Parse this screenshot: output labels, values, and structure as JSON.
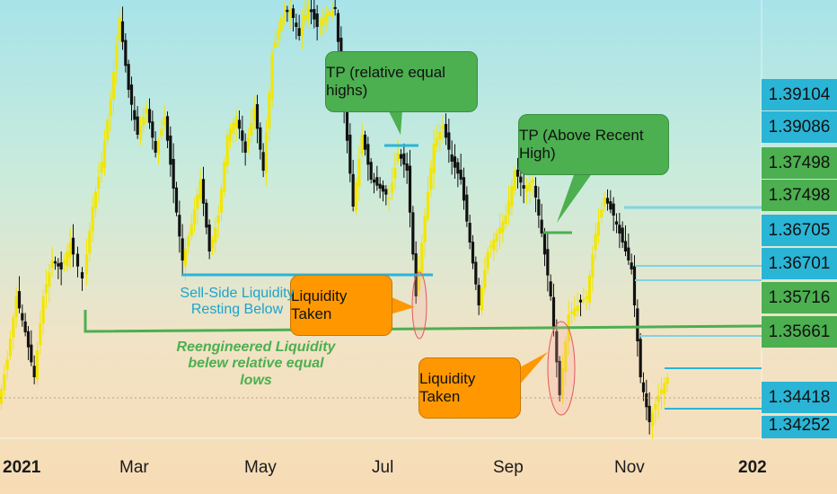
{
  "chart_data": {
    "type": "candlestick",
    "title": "",
    "x_ticks": [
      "2021",
      "Mar",
      "May",
      "Jul",
      "Sep",
      "Nov",
      "202"
    ],
    "price_levels": [
      {
        "label": "1.39104",
        "color": "#2ab5d6"
      },
      {
        "label": "1.39086",
        "color": "#2ab5d6"
      },
      {
        "label": "1.37498",
        "color": "#4caf50"
      },
      {
        "label": "1.37498",
        "color": "#4caf50"
      },
      {
        "label": "1.36705",
        "color": "#2ab5d6"
      },
      {
        "label": "1.36701",
        "color": "#2ab5d6"
      },
      {
        "label": "1.35716",
        "color": "#4caf50"
      },
      {
        "label": "1.35661",
        "color": "#4caf50"
      },
      {
        "label": "1.34418",
        "color": "#2ab5d6"
      },
      {
        "label": "1.34252",
        "color": "#2ab5d6"
      }
    ],
    "annotations": {
      "tp_relative_equal_highs": "TP (relative equal highs)",
      "tp_above_recent_high": "TP (Above Recent High)",
      "liquidity_taken_1": "Liquidity Taken",
      "liquidity_taken_2": "Liquidity Taken",
      "sell_side_line1": "Sell-Side Liquidity",
      "sell_side_line2": "Resting Below",
      "reengineered_line1": "Reengineered Liquidity",
      "reengineered_line2": "belew relative equal lows"
    },
    "colors": {
      "bull_candle": "#f2e600",
      "bear_candle": "#111111",
      "green_level": "#4caf50",
      "blue_level": "#2ab5d6",
      "callout_green": "#4caf50",
      "callout_orange": "#ff9800"
    }
  }
}
